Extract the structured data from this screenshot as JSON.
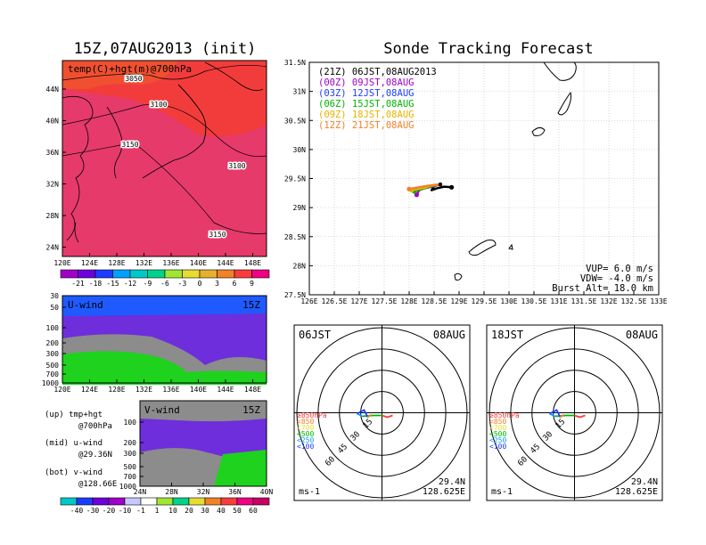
{
  "titles": {
    "left": "15Z,07AUG2013 (init)",
    "right": "Sonde Tracking Forecast"
  },
  "map_panel": {
    "label": "temp(C)+hgt(m)@700hPa",
    "contour_labels": [
      "3050",
      "3100",
      "3150",
      "3100",
      "3150"
    ],
    "lat_ticks": [
      "44N",
      "40N",
      "36N",
      "32N",
      "28N",
      "24N"
    ],
    "lon_ticks": [
      "120E",
      "124E",
      "128E",
      "132E",
      "136E",
      "140E",
      "144E",
      "148E"
    ],
    "colorbar_labels": [
      "-21",
      "-18",
      "-15",
      "-12",
      "-9",
      "-6",
      "-3",
      "0",
      "3",
      "6",
      "9"
    ],
    "colorbar_colors": [
      "#a000c8",
      "#6e00dc",
      "#1e3cff",
      "#00a0ff",
      "#00c8c8",
      "#00d28c",
      "#a0e632",
      "#e6dc32",
      "#e6af2d",
      "#f08228",
      "#fa3c3c",
      "#f00082"
    ]
  },
  "uwind_panel": {
    "label": "U-wind",
    "time": "15Z",
    "p_ticks": [
      "30",
      "50",
      "100",
      "200",
      "300",
      "500",
      "700",
      "1000"
    ],
    "lon_ticks": [
      "120E",
      "124E",
      "128E",
      "132E",
      "136E",
      "140E",
      "144E",
      "148E"
    ]
  },
  "vwind_panel": {
    "label": "V-wind",
    "time": "15Z",
    "p_ticks": [
      "100",
      "200",
      "300",
      "500",
      "700",
      "1000"
    ],
    "lat_ticks": [
      "24N",
      "28N",
      "32N",
      "36N",
      "40N"
    ],
    "colorbar_labels": [
      "-40",
      "-30",
      "-20",
      "-10",
      "-1",
      "1",
      "10",
      "20",
      "30",
      "40",
      "50",
      "60"
    ],
    "colorbar_colors": [
      "#00c8c8",
      "#1e3cff",
      "#6e00dc",
      "#a000c8",
      "#c8c8ff",
      "#ffffff",
      "#a0e632",
      "#00d28c",
      "#e6dc32",
      "#f08228",
      "#fa3c3c",
      "#f00082",
      "#c80064"
    ]
  },
  "notes": {
    "line1a": "(up) tmp+hgt",
    "line1b": "@700hPa",
    "line2a": "(mid) u-wind",
    "line2b": "@29.36N",
    "line3a": "(bot) v-wind",
    "line3b": "@128.66E"
  },
  "chart_data": {
    "type": "scatter",
    "title": "Sonde Tracking Forecast",
    "xlim": [
      126,
      133
    ],
    "ylim": [
      27.5,
      31.5
    ],
    "x_ticks": [
      "126E",
      "126.5E",
      "127E",
      "127.5E",
      "128E",
      "128.5E",
      "129E",
      "129.5E",
      "130E",
      "130.5E",
      "131E",
      "131.5E",
      "132E",
      "132.5E",
      "133E"
    ],
    "y_ticks": [
      "27.5N",
      "28N",
      "28.5N",
      "29N",
      "29.5N",
      "30N",
      "30.5N",
      "31N",
      "31.5N"
    ],
    "launch": {
      "lon": 128.625,
      "lat": 29.4
    },
    "legend": [
      {
        "label": "(21Z) 06JST,08AUG2013",
        "color": "#000000"
      },
      {
        "label": "(00Z) 09JST,08AUG",
        "color": "#a000c8"
      },
      {
        "label": "(03Z) 12JST,08AUG",
        "color": "#1e3cff"
      },
      {
        "label": "(06Z) 15JST,08AUG",
        "color": "#00b400"
      },
      {
        "label": "(09Z) 18JST,08AUG",
        "color": "#e6b400"
      },
      {
        "label": "(12Z) 21JST,08AUG",
        "color": "#f08228"
      }
    ],
    "series": [
      {
        "color": "#000000",
        "lon": [
          128.625,
          128.5,
          128.45,
          128.55,
          128.7,
          128.85
        ],
        "lat": [
          29.4,
          29.37,
          29.3,
          29.33,
          29.36,
          29.35
        ]
      },
      {
        "color": "#a000c8",
        "lon": [
          128.625,
          128.45,
          128.3,
          128.2,
          128.15
        ],
        "lat": [
          29.4,
          29.36,
          29.33,
          29.3,
          29.22
        ]
      },
      {
        "color": "#1e3cff",
        "lon": [
          128.625,
          128.4,
          128.25,
          128.1
        ],
        "lat": [
          29.4,
          29.36,
          29.33,
          29.3
        ]
      },
      {
        "color": "#00b400",
        "lon": [
          128.625,
          128.45,
          128.3,
          128.1
        ],
        "lat": [
          29.4,
          29.37,
          29.33,
          29.28
        ]
      },
      {
        "color": "#e6b400",
        "lon": [
          128.625,
          128.45,
          128.3,
          128.05
        ],
        "lat": [
          29.4,
          29.38,
          29.34,
          29.3
        ]
      },
      {
        "color": "#f08228",
        "lon": [
          128.625,
          128.4,
          128.2,
          128.0
        ],
        "lat": [
          29.4,
          29.38,
          29.35,
          29.32
        ]
      }
    ],
    "stats": {
      "line1": "VUP= 6.0 m/s",
      "line2": "VDW= -4.0 m/s",
      "line3": "Burst Alt= 18.0 km"
    }
  },
  "hodographs": [
    {
      "time": "06JST",
      "date": "08AUG",
      "unit": "ms-1",
      "lat": "29.4N",
      "lon": "128.625E",
      "ring_labels": [
        "15",
        "30",
        "45",
        "60"
      ],
      "level_labels": [
        "≥850hPa",
        "<850",
        "<700",
        "<500",
        "<250",
        "<100"
      ],
      "level_colors": [
        "#fa3c3c",
        "#f08228",
        "#e6dc32",
        "#00b400",
        "#00a0ff",
        "#1e3cff"
      ]
    },
    {
      "time": "18JST",
      "date": "08AUG",
      "unit": "ms-1",
      "lat": "29.4N",
      "lon": "128.625E",
      "ring_labels": [
        "15",
        "30",
        "45",
        "60"
      ],
      "level_labels": [
        "≥850hPa",
        "<850",
        "<700",
        "<500",
        "<250",
        "<100"
      ],
      "level_colors": [
        "#fa3c3c",
        "#f08228",
        "#e6dc32",
        "#00b400",
        "#00a0ff",
        "#1e3cff"
      ]
    }
  ]
}
